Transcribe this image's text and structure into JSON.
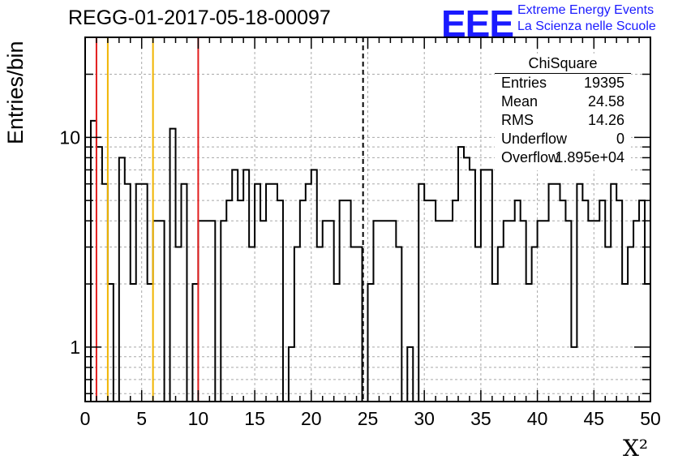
{
  "header": {
    "title": "REGG-01-2017-05-18-00097",
    "logo_text": "EEE",
    "logo_line1": "Extreme Energy Events",
    "logo_line2": "La Scienza nelle Scuole"
  },
  "stats_box": {
    "title": "ChiSquare",
    "rows": [
      {
        "name": "Entries",
        "value": "19395"
      },
      {
        "name": "Mean",
        "value": "24.58"
      },
      {
        "name": "RMS",
        "value": "14.26"
      },
      {
        "name": "Underflow",
        "value": "0"
      },
      {
        "name": "Overflow",
        "value": "1.895e+04"
      }
    ]
  },
  "chart_data": {
    "type": "histogram",
    "title": "REGG-01-2017-05-18-00097",
    "xlabel": "X²",
    "ylabel": "Entries/bin",
    "xlim": [
      0,
      50
    ],
    "ylim": [
      0.55,
      30
    ],
    "yscale": "log",
    "grid": true,
    "bin_width": 0.5,
    "x_ticks": [
      0,
      5,
      10,
      15,
      20,
      25,
      30,
      35,
      40,
      45,
      50
    ],
    "y_ticks": [
      1,
      10
    ],
    "values": [
      0,
      12,
      9,
      6,
      2,
      0,
      8,
      6,
      2,
      6,
      6,
      2,
      4,
      4,
      0,
      11,
      3,
      6,
      0,
      2,
      4,
      4,
      4,
      0,
      4,
      5,
      7,
      5,
      7,
      3,
      6,
      4,
      6,
      6,
      5,
      0,
      1,
      3,
      5,
      6,
      7,
      3,
      4,
      4,
      2,
      5,
      5,
      3,
      3,
      0,
      2,
      4,
      4,
      4,
      4,
      3,
      0,
      1,
      0,
      6,
      5,
      5,
      4,
      4,
      4,
      5,
      9,
      8,
      7,
      3,
      7,
      7,
      2,
      3,
      4,
      4,
      5,
      4,
      2,
      3,
      4,
      4,
      6,
      6,
      5,
      4,
      1,
      6,
      5,
      4,
      4,
      5,
      3,
      6,
      5,
      2,
      3,
      4,
      5,
      2
    ],
    "reference_lines": [
      {
        "x": 1,
        "color": "#e21d1d"
      },
      {
        "x": 2,
        "color": "#f0b400"
      },
      {
        "x": 6,
        "color": "#f0b400"
      },
      {
        "x": 10,
        "color": "#e21d1d"
      },
      {
        "x": 24.58,
        "color": "#000000",
        "style": "dashed"
      }
    ]
  }
}
